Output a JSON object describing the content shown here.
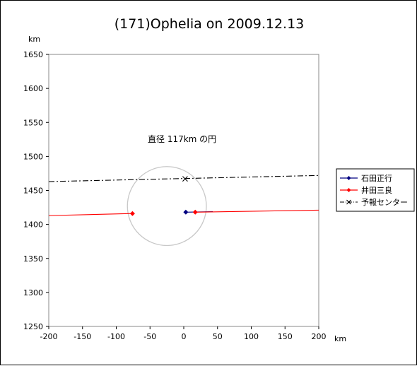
{
  "chart_data": {
    "type": "line",
    "title": "(171)Ophelia on 2009.12.13",
    "x_unit": "km",
    "y_unit": "km",
    "xlim": [
      -200,
      200
    ],
    "ylim": [
      1250,
      1650
    ],
    "x_ticks": [
      -200,
      -150,
      -100,
      -50,
      0,
      50,
      100,
      150,
      200
    ],
    "y_ticks": [
      1250,
      1300,
      1350,
      1400,
      1450,
      1500,
      1550,
      1600,
      1650
    ],
    "x_tick_labels": [
      "-200",
      "-150",
      "-100",
      "-50",
      "0",
      "50",
      "100",
      "150",
      "200"
    ],
    "y_tick_labels": [
      "1250",
      "1300",
      "1350",
      "1400",
      "1450",
      "1500",
      "1550",
      "1600",
      "1650"
    ],
    "grid": false,
    "legend_position": "right",
    "annotation": {
      "text": "直径 117km の円"
    },
    "circle": {
      "cx": -25,
      "cy": 1427,
      "diameter": 117,
      "color": "#c8c8c8"
    },
    "series": [
      {
        "name": "石田正行",
        "color": "#000080",
        "marker": "diamond",
        "line": "solid",
        "segments": [
          {
            "x": [
              3,
              43
            ],
            "y": [
              1418,
              1418.8
            ]
          }
        ],
        "points": [
          {
            "x": 3,
            "y": 1418
          }
        ]
      },
      {
        "name": "井田三良",
        "color": "#ff0000",
        "marker": "diamond",
        "line": "solid",
        "segments": [
          {
            "x": [
              -200,
              -76
            ],
            "y": [
              1413,
              1416
            ]
          },
          {
            "x": [
              17,
              200
            ],
            "y": [
              1418,
              1421
            ]
          }
        ],
        "points": [
          {
            "x": -76,
            "y": 1416
          },
          {
            "x": 17,
            "y": 1418
          }
        ]
      },
      {
        "name": "予報センター",
        "color": "#000000",
        "marker": "x",
        "line": "dashdot",
        "segments": [
          {
            "x": [
              -200,
              200
            ],
            "y": [
              1463,
              1472
            ]
          }
        ],
        "points": [
          {
            "x": 2,
            "y": 1467
          }
        ]
      }
    ]
  }
}
